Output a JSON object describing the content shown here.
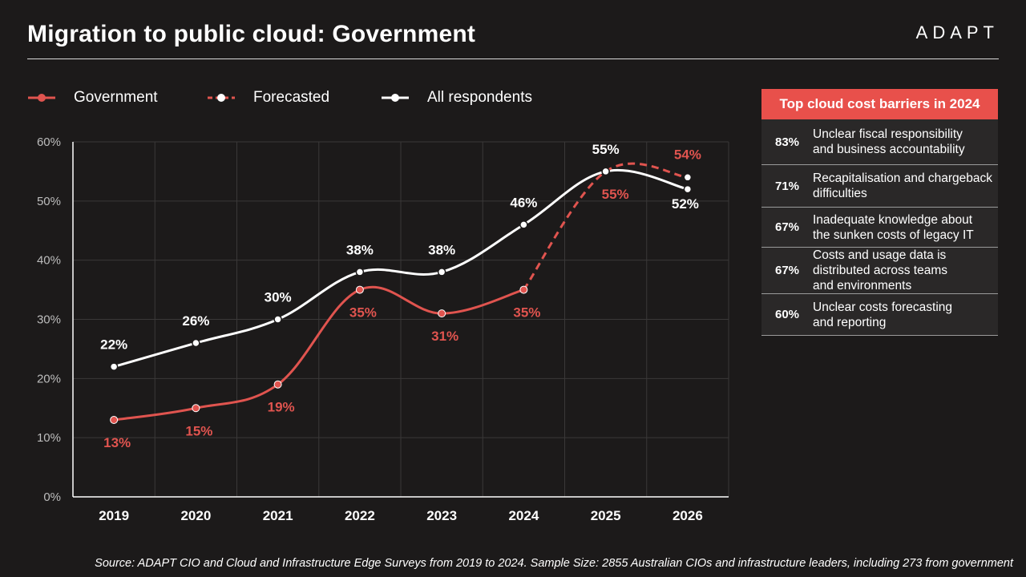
{
  "title": "Migration to public cloud: Government",
  "logo": "ADAPT",
  "colors": {
    "government": "#e0544f",
    "all": "#ffffff",
    "panel_header": "#e8504b",
    "background": "#1c1a1a",
    "grid": "#3a3838"
  },
  "legend": [
    {
      "label": "Government",
      "style": "solid",
      "color": "#e0544f"
    },
    {
      "label": "Forecasted",
      "style": "dashed",
      "color": "#e0544f"
    },
    {
      "label": "All respondents",
      "style": "solid",
      "color": "#ffffff"
    }
  ],
  "chart_data": {
    "type": "line",
    "categories": [
      "2019",
      "2020",
      "2021",
      "2022",
      "2023",
      "2024",
      "2025",
      "2026"
    ],
    "ylim": [
      0,
      60
    ],
    "yticks": [
      "0%",
      "10%",
      "20%",
      "30%",
      "40%",
      "50%",
      "60%"
    ],
    "grid": true,
    "legend_position": "top-left",
    "series": [
      {
        "name": "Government",
        "values": [
          13,
          15,
          19,
          35,
          31,
          35,
          null,
          null
        ],
        "labels": [
          "13%",
          "15%",
          "19%",
          "35%",
          "31%",
          "35%",
          null,
          null
        ]
      },
      {
        "name": "Forecasted",
        "values": [
          null,
          null,
          null,
          null,
          null,
          35,
          55,
          54
        ],
        "labels": [
          null,
          null,
          null,
          null,
          null,
          null,
          "55%",
          "54%"
        ]
      },
      {
        "name": "All respondents",
        "values": [
          22,
          26,
          30,
          38,
          38,
          46,
          55,
          52
        ],
        "labels": [
          "22%",
          "26%",
          "30%",
          "38%",
          "38%",
          "46%",
          "55%",
          "52%"
        ]
      }
    ]
  },
  "panel": {
    "title": "Top cloud cost barriers in 2024",
    "rows": [
      {
        "pct": "83%",
        "text": "Unclear fiscal responsibility\nand business accountability"
      },
      {
        "pct": "71%",
        "text": "Recapitalisation and chargeback\ndifficulties"
      },
      {
        "pct": "67%",
        "text": "Inadequate knowledge about\nthe sunken costs of legacy IT"
      },
      {
        "pct": "67%",
        "text": "Costs and usage data is\ndistributed across teams\nand environments"
      },
      {
        "pct": "60%",
        "text": "Unclear costs forecasting\nand reporting"
      }
    ]
  },
  "source": "Source: ADAPT CIO and Cloud and Infrastructure Edge Surveys from 2019 to 2024. Sample Size: 2855 Australian CIOs and infrastructure leaders, including 273 from government"
}
